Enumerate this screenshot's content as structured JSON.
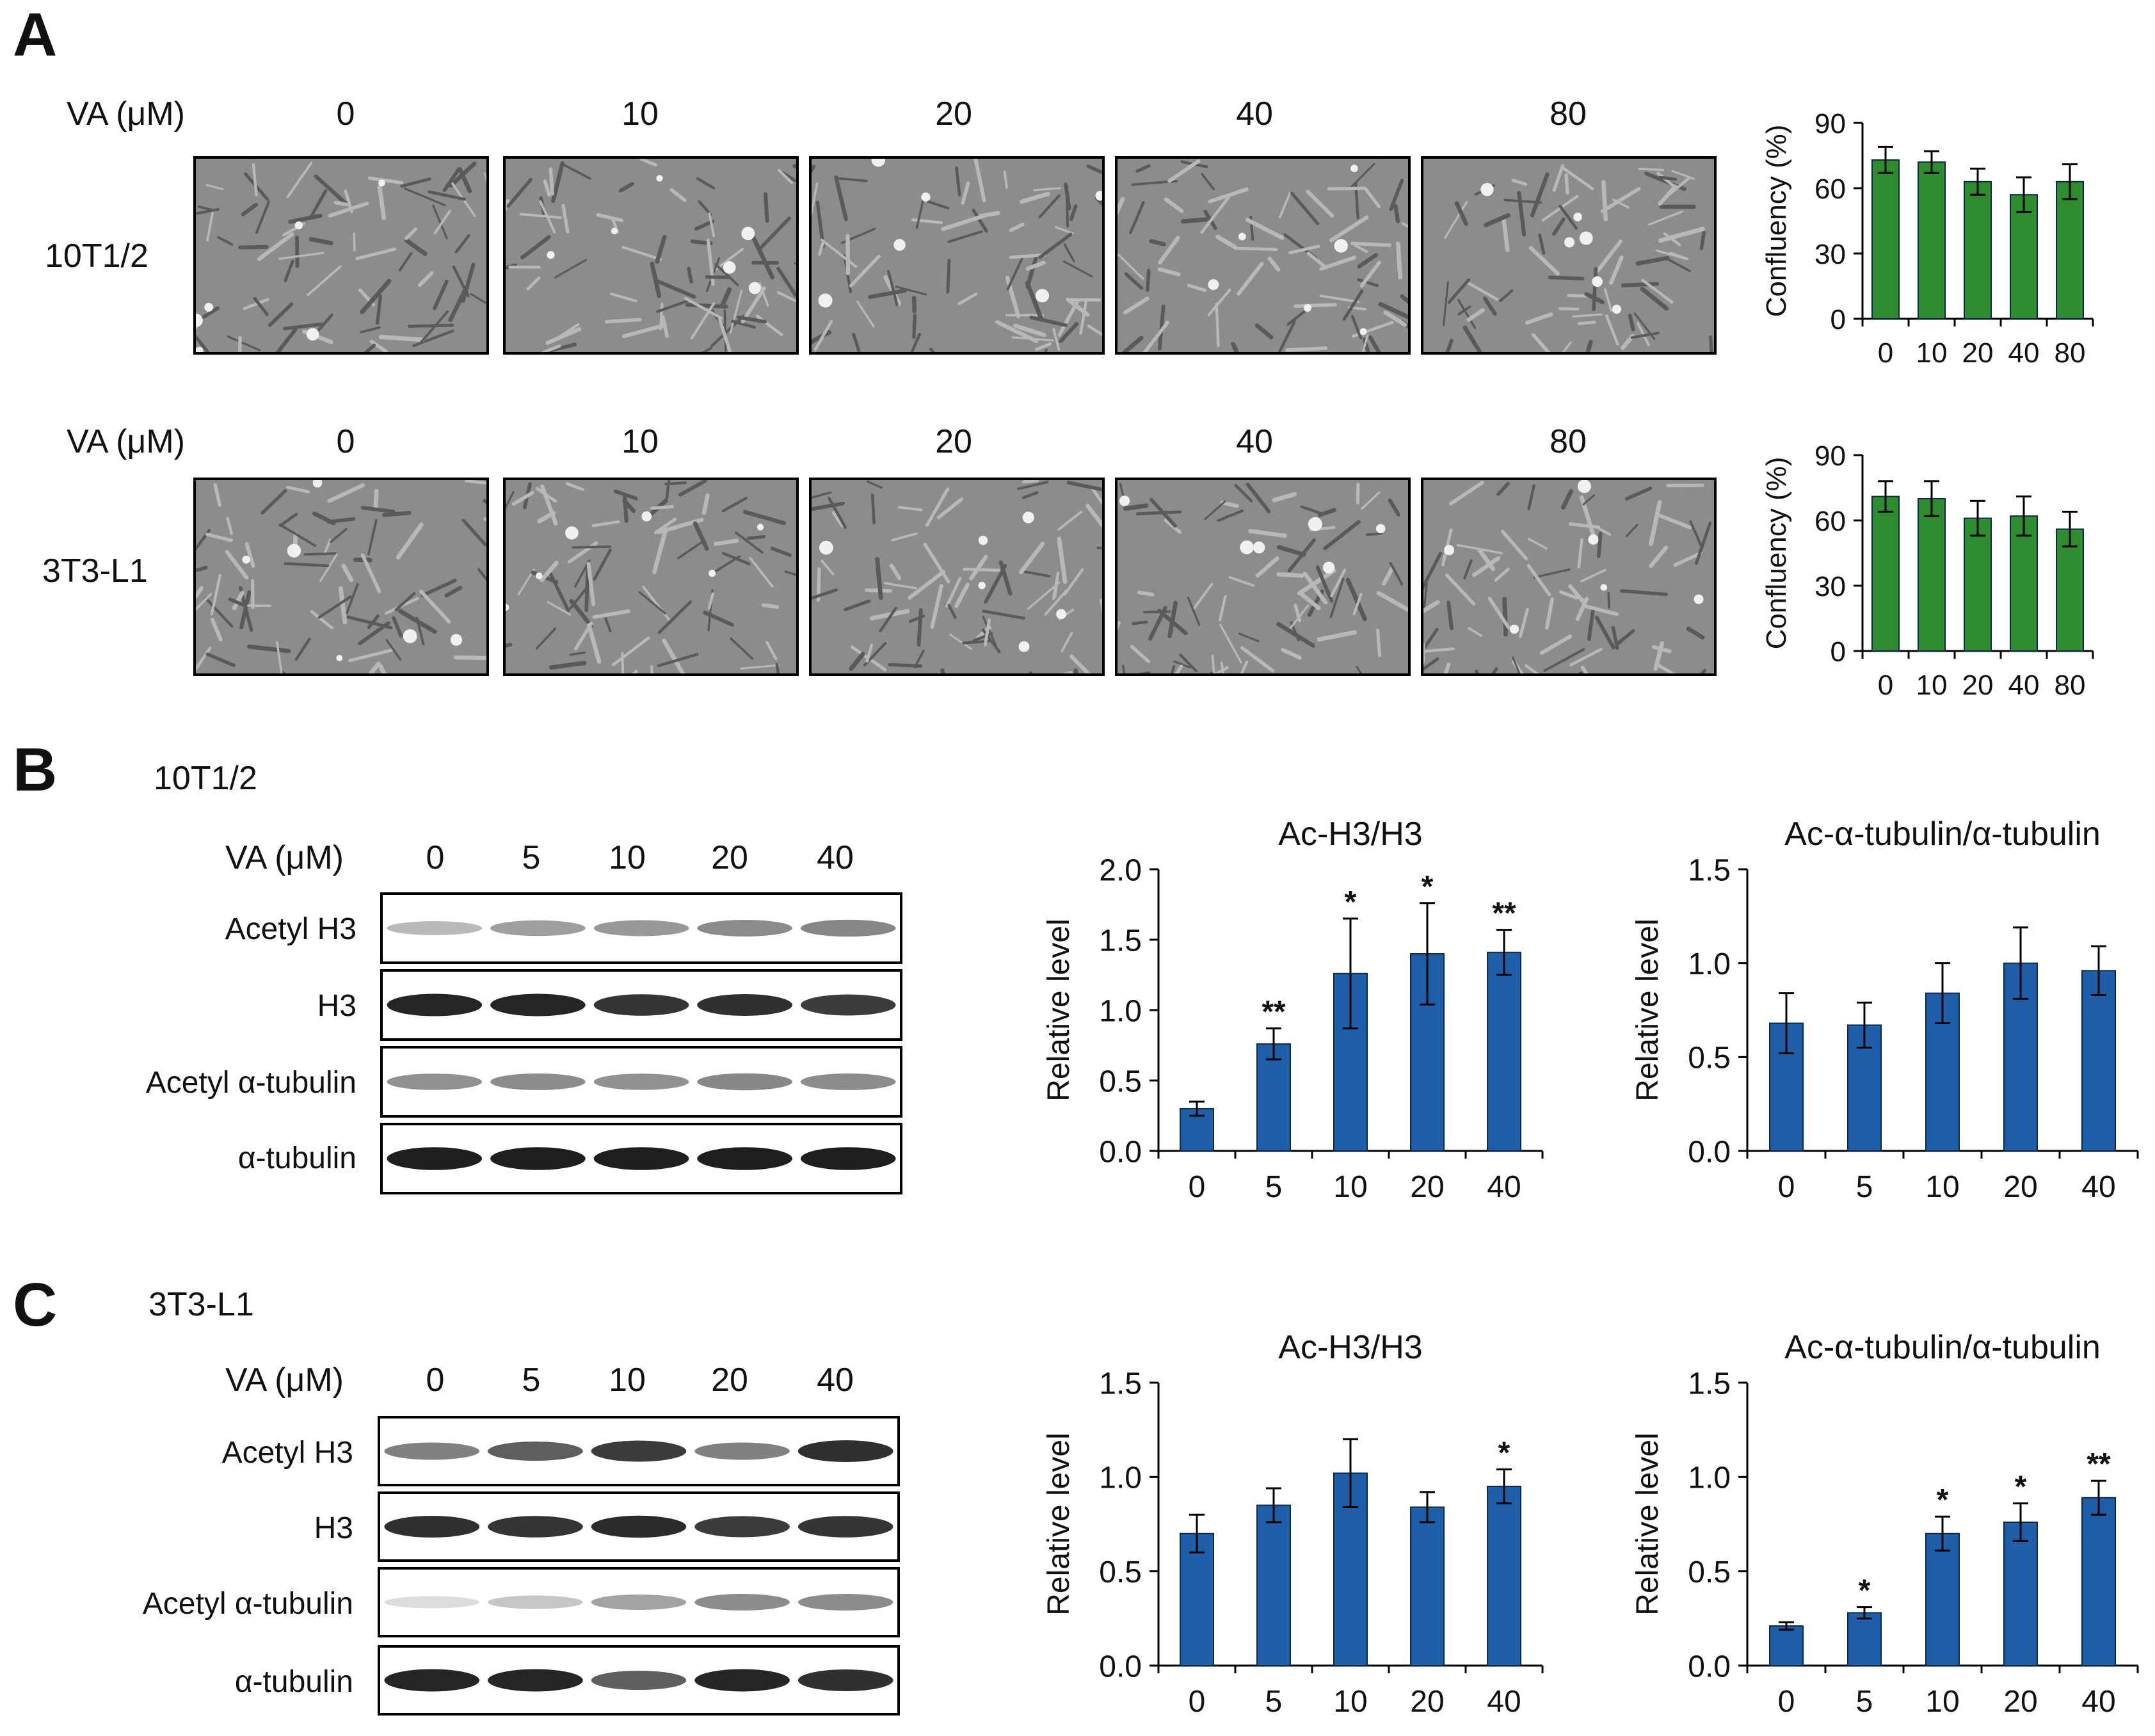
{
  "panels": {
    "a": "A",
    "b": "B",
    "c": "C"
  },
  "panelA": {
    "rows": [
      {
        "cell_line": "10T1/2",
        "va_label": "VA (μM)",
        "concentrations": [
          "0",
          "10",
          "20",
          "40",
          "80"
        ]
      },
      {
        "cell_line": "3T3-L1",
        "va_label": "VA (μM)",
        "concentrations": [
          "0",
          "10",
          "20",
          "40",
          "80"
        ]
      }
    ]
  },
  "panelB": {
    "cell_line": "10T1/2",
    "va_label": "VA (μM)",
    "concentrations": [
      "0",
      "5",
      "10",
      "20",
      "40"
    ],
    "blot_rows": [
      "Acetyl H3",
      "H3",
      "Acetyl α-tubulin",
      "α-tubulin"
    ],
    "band_intensity": [
      [
        0.3,
        0.42,
        0.45,
        0.5,
        0.52
      ],
      [
        0.95,
        0.95,
        0.88,
        0.9,
        0.85
      ],
      [
        0.48,
        0.5,
        0.48,
        0.52,
        0.5
      ],
      [
        0.98,
        0.98,
        0.98,
        0.98,
        0.98
      ]
    ]
  },
  "panelC": {
    "cell_line": "3T3-L1",
    "va_label": "VA (μM)",
    "concentrations": [
      "0",
      "5",
      "10",
      "20",
      "40"
    ],
    "blot_rows": [
      "Acetyl H3",
      "H3",
      "Acetyl α-tubulin",
      "α-tubulin"
    ],
    "band_intensity": [
      [
        0.55,
        0.7,
        0.85,
        0.55,
        0.9
      ],
      [
        0.9,
        0.88,
        0.92,
        0.85,
        0.88
      ],
      [
        0.15,
        0.25,
        0.4,
        0.5,
        0.5
      ],
      [
        0.95,
        0.95,
        0.7,
        0.95,
        0.9
      ]
    ]
  },
  "colors": {
    "green": "#2e8b2e",
    "blue": "#1f5ea8",
    "axis": "#000000"
  },
  "chart_data": [
    {
      "id": "a1",
      "type": "bar",
      "title": "",
      "xlabel": "",
      "ylabel": "Confluency (%)",
      "categories": [
        "0",
        "10",
        "20",
        "40",
        "80"
      ],
      "values": [
        73,
        72,
        63,
        57,
        63
      ],
      "errors": [
        6,
        5,
        6,
        8,
        8
      ],
      "significance": [
        "",
        "",
        "",
        "",
        ""
      ],
      "ylim": [
        0,
        90
      ],
      "yticks": [
        "0",
        "30",
        "60",
        "90"
      ],
      "tick_values": [
        0,
        30,
        60,
        90
      ],
      "color": "#2e8b2e",
      "grid": false
    },
    {
      "id": "a2",
      "type": "bar",
      "title": "",
      "xlabel": "",
      "ylabel": "Confluency (%)",
      "categories": [
        "0",
        "10",
        "20",
        "40",
        "80"
      ],
      "values": [
        71,
        70,
        61,
        62,
        56
      ],
      "errors": [
        7,
        8,
        8,
        9,
        8
      ],
      "significance": [
        "",
        "",
        "",
        "",
        ""
      ],
      "ylim": [
        0,
        90
      ],
      "yticks": [
        "0",
        "30",
        "60",
        "90"
      ],
      "tick_values": [
        0,
        30,
        60,
        90
      ],
      "color": "#2e8b2e",
      "grid": false
    },
    {
      "id": "b1",
      "type": "bar",
      "title": "Ac-H3/H3",
      "xlabel": "",
      "ylabel": "Relative level",
      "categories": [
        "0",
        "5",
        "10",
        "20",
        "40"
      ],
      "values": [
        0.3,
        0.76,
        1.26,
        1.4,
        1.41
      ],
      "errors": [
        0.05,
        0.11,
        0.39,
        0.36,
        0.16
      ],
      "significance": [
        "",
        "**",
        "*",
        "*",
        "**"
      ],
      "ylim": [
        0,
        2.0
      ],
      "yticks": [
        "0.0",
        "0.5",
        "1.0",
        "1.5",
        "2.0"
      ],
      "tick_values": [
        0,
        0.5,
        1.0,
        1.5,
        2.0
      ],
      "color": "#1f5ea8",
      "grid": false
    },
    {
      "id": "b2",
      "type": "bar",
      "title": "Ac-α-tubulin/α-tubulin",
      "xlabel": "",
      "ylabel": "Relative level",
      "categories": [
        "0",
        "5",
        "10",
        "20",
        "40"
      ],
      "values": [
        0.68,
        0.67,
        0.84,
        1.0,
        0.96
      ],
      "errors": [
        0.16,
        0.12,
        0.16,
        0.19,
        0.13
      ],
      "significance": [
        "",
        "",
        "",
        "",
        ""
      ],
      "ylim": [
        0,
        1.5
      ],
      "yticks": [
        "0.0",
        "0.5",
        "1.0",
        "1.5"
      ],
      "tick_values": [
        0,
        0.5,
        1.0,
        1.5
      ],
      "color": "#1f5ea8",
      "grid": false
    },
    {
      "id": "c1",
      "type": "bar",
      "title": "Ac-H3/H3",
      "xlabel": "",
      "ylabel": "Relative level",
      "categories": [
        "0",
        "5",
        "10",
        "20",
        "40"
      ],
      "values": [
        0.7,
        0.85,
        1.02,
        0.84,
        0.95
      ],
      "errors": [
        0.1,
        0.09,
        0.18,
        0.08,
        0.09
      ],
      "significance": [
        "",
        "",
        "",
        "",
        "*"
      ],
      "ylim": [
        0,
        1.5
      ],
      "yticks": [
        "0.0",
        "0.5",
        "1.0",
        "1.5"
      ],
      "tick_values": [
        0,
        0.5,
        1.0,
        1.5
      ],
      "color": "#1f5ea8",
      "grid": false
    },
    {
      "id": "c2",
      "type": "bar",
      "title": "Ac-α-tubulin/α-tubulin",
      "xlabel": "",
      "ylabel": "Relative level",
      "categories": [
        "0",
        "5",
        "10",
        "20",
        "40"
      ],
      "values": [
        0.21,
        0.28,
        0.7,
        0.76,
        0.89
      ],
      "errors": [
        0.02,
        0.03,
        0.09,
        0.1,
        0.09
      ],
      "significance": [
        "",
        "*",
        "*",
        "*",
        "**"
      ],
      "ylim": [
        0,
        1.5
      ],
      "yticks": [
        "0.0",
        "0.5",
        "1.0",
        "1.5"
      ],
      "tick_values": [
        0,
        0.5,
        1.0,
        1.5
      ],
      "color": "#1f5ea8",
      "grid": false
    }
  ]
}
